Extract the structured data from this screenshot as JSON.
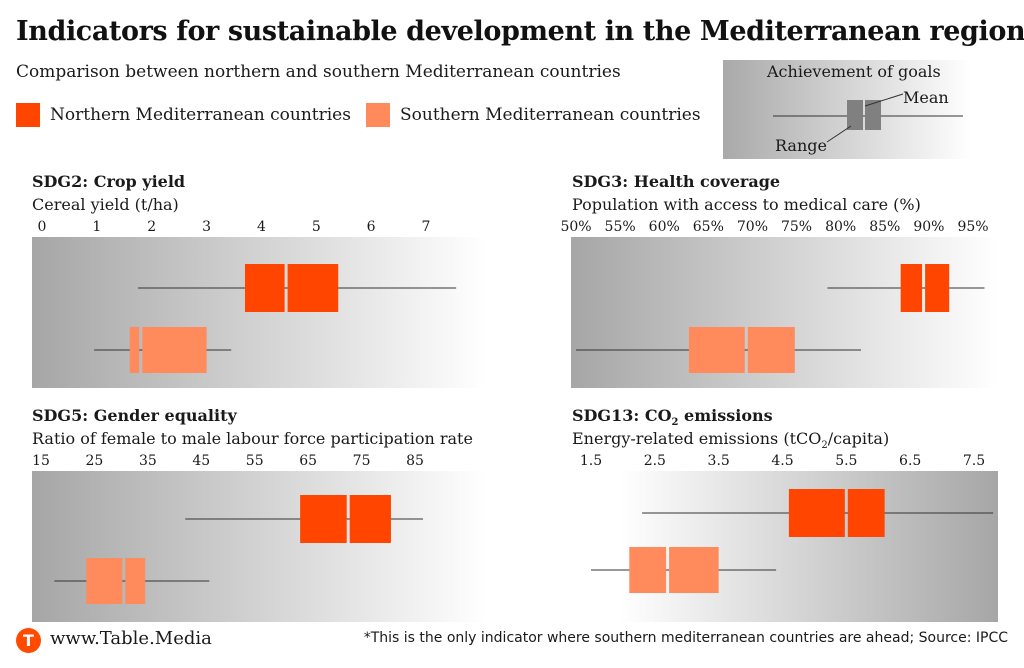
{
  "title": "Indicators for sustainable development in the Mediterranean region",
  "subtitle": "Comparison between northern and southern Mediterranean countries",
  "colors": {
    "north": "#ff4500",
    "south": "#ff8a5c"
  },
  "legend": {
    "north": "Northern Mediterranean countries",
    "south": "Southern Mediterranean countries"
  },
  "goal_legend": {
    "title": "Achievement of goals",
    "mean": "Mean",
    "range": "Range"
  },
  "footer": {
    "logo": "T",
    "url": "www.Table.Media",
    "note": "*This is the only indicator where southern mediterranean countries are ahead; Source: IPCC"
  },
  "chart_data": [
    {
      "type": "boxplot",
      "title": "SDG2: Crop yield",
      "xlabel": "Cereal yield (t/ha)",
      "ticks": [
        "0",
        "1",
        "2",
        "3",
        "4",
        "5",
        "6",
        "7"
      ],
      "xlim": [
        0,
        7
      ],
      "gradient": "dark-left",
      "series": [
        {
          "name": "Northern Mediterranean countries",
          "min": 1.75,
          "q1": 3.7,
          "mean": 4.45,
          "q3": 5.4,
          "max": 7.55
        },
        {
          "name": "Southern Mediterranean countries",
          "min": 0.95,
          "q1": 1.6,
          "mean": 1.8,
          "q3": 3.0,
          "max": 3.45
        }
      ]
    },
    {
      "type": "boxplot",
      "title": "SDG3: Health coverage",
      "xlabel": "Population with access to medical care (%)",
      "ticks": [
        "50%",
        "55%",
        "60%",
        "65%",
        "70%",
        "75%",
        "80%",
        "85%",
        "90%",
        "95%"
      ],
      "xlim": [
        50,
        95
      ],
      "gradient": "dark-left",
      "series": [
        {
          "name": "Northern Mediterranean countries",
          "min": 78.5,
          "q1": 86.8,
          "mean": 89.4,
          "q3": 92.3,
          "max": 96.3
        },
        {
          "name": "Southern Mediterranean countries",
          "min": 50.0,
          "q1": 62.8,
          "mean": 69.3,
          "q3": 74.8,
          "max": 82.3
        }
      ]
    },
    {
      "type": "boxplot",
      "title": "SDG5: Gender equality",
      "xlabel": "Ratio of female to male labour force participation rate",
      "ticks": [
        "15",
        "25",
        "35",
        "45",
        "55",
        "65",
        "75",
        "85"
      ],
      "xlim": [
        15,
        85
      ],
      "gradient": "dark-left",
      "series": [
        {
          "name": "Northern Mediterranean countries",
          "min": 42.0,
          "q1": 63.5,
          "mean": 72.5,
          "q3": 80.5,
          "max": 86.5
        },
        {
          "name": "Southern Mediterranean countries",
          "min": 17.5,
          "q1": 23.5,
          "mean": 30.5,
          "q3": 34.5,
          "max": 46.5
        }
      ]
    },
    {
      "type": "boxplot",
      "title": "SDG13: CO",
      "title_sub": "2",
      "title_tail": " emissions",
      "xlabel": "Energy-related emissions (tCO",
      "xlabel_sub": "2",
      "xlabel_tail": "/capita)",
      "ticks": [
        "1.5",
        "2.5",
        "3.5",
        "4.5",
        "5.5",
        "6.5",
        "7.5"
      ],
      "xlim": [
        1.5,
        7.5
      ],
      "gradient": "dark-right",
      "series": [
        {
          "name": "Northern Mediterranean countries",
          "min": 2.3,
          "q1": 4.6,
          "mean": 5.5,
          "q3": 6.1,
          "max": 7.8
        },
        {
          "name": "Southern Mediterranean countries",
          "min": 1.5,
          "q1": 2.1,
          "mean": 2.7,
          "q3": 3.5,
          "max": 4.4
        }
      ]
    }
  ]
}
